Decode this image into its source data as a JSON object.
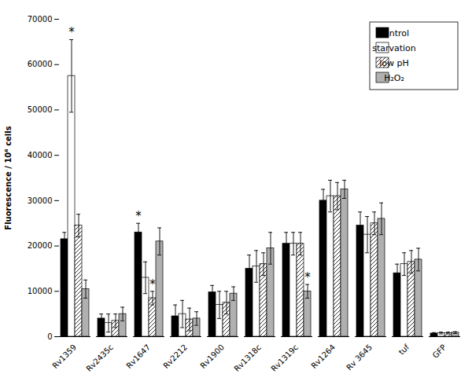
{
  "chart_data": {
    "type": "bar",
    "categories": [
      "Rv1359",
      "Rv2435c",
      "Rv1647",
      "Rv2212",
      "Rv1900",
      "Rv1318c",
      "Rv1319c",
      "Rv1264",
      "Rv 3645",
      "tuf",
      "GFP"
    ],
    "series": [
      {
        "name": "control",
        "color": "#000000",
        "values": [
          21500,
          4000,
          23000,
          4500,
          9800,
          15000,
          20500,
          30000,
          24500,
          14000,
          700
        ],
        "errors": [
          1500,
          1000,
          2000,
          2500,
          1500,
          3000,
          2500,
          2500,
          3000,
          2000,
          200
        ]
      },
      {
        "name": "starvation",
        "color": "#ffffff",
        "values": [
          57500,
          3000,
          13000,
          5000,
          7000,
          15500,
          20500,
          31000,
          22500,
          16000,
          800
        ],
        "errors": [
          8000,
          2000,
          3500,
          3000,
          3000,
          3500,
          2500,
          3500,
          4000,
          2500,
          200
        ]
      },
      {
        "name": "low pH",
        "color": "#ffffff",
        "values": [
          24500,
          3500,
          8500,
          3800,
          7500,
          16000,
          20500,
          31000,
          25000,
          16500,
          800
        ],
        "errors": [
          2500,
          1500,
          1500,
          2500,
          2500,
          2500,
          2500,
          3000,
          2500,
          2500,
          200
        ]
      },
      {
        "name": "H₂O₂",
        "color": "#b0b0b0",
        "values": [
          10500,
          5000,
          21000,
          4000,
          9500,
          19500,
          10000,
          32500,
          26000,
          17000,
          900
        ],
        "errors": [
          2000,
          1500,
          3000,
          1500,
          1500,
          3500,
          1500,
          2000,
          3500,
          2500,
          200
        ]
      }
    ],
    "annotations": [
      {
        "text": "*",
        "category": "Rv1359",
        "series": "starvation"
      },
      {
        "text": "*",
        "category": "Rv1647",
        "series": "control"
      },
      {
        "text": "*",
        "category": "Rv1647",
        "series": "low pH"
      },
      {
        "text": "*",
        "category": "Rv1319c",
        "series": "H₂O₂"
      }
    ],
    "ylabel": "Fluorescence / 10⁶ cells",
    "ylim": [
      0,
      70000
    ],
    "yticks": [
      0,
      10000,
      20000,
      30000,
      40000,
      50000,
      60000,
      70000
    ],
    "grid": false,
    "legend": "upper right"
  }
}
